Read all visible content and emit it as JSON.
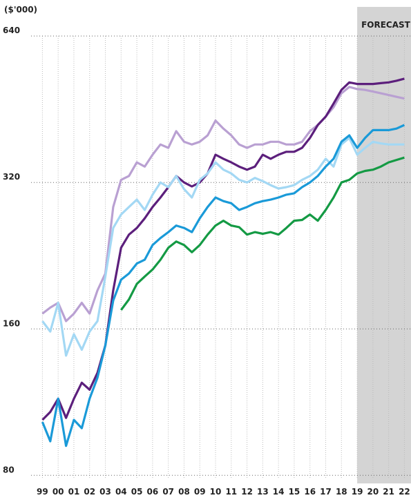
{
  "chart_data": {
    "type": "line",
    "y_label": "($'000)",
    "log_scale": true,
    "grid": true,
    "shaded_region": {
      "label": "FORECAST",
      "x": [
        2019,
        2022.42
      ],
      "color": "#d4d4d4"
    },
    "xlim": [
      1998.5,
      2022.42
    ],
    "ylim": [
      77,
      666
    ],
    "yticks": [
      80,
      160,
      320,
      640
    ],
    "xticks": [
      {
        "value": 1999,
        "label": "99"
      },
      {
        "value": 2000,
        "label": "00"
      },
      {
        "value": 2001,
        "label": "01"
      },
      {
        "value": 2002,
        "label": "02"
      },
      {
        "value": 2003,
        "label": "03"
      },
      {
        "value": 2004,
        "label": "04"
      },
      {
        "value": 2005,
        "label": "05"
      },
      {
        "value": 2006,
        "label": "06"
      },
      {
        "value": 2007,
        "label": "07"
      },
      {
        "value": 2008,
        "label": "08"
      },
      {
        "value": 2009,
        "label": "09"
      },
      {
        "value": 2010,
        "label": "10"
      },
      {
        "value": 2011,
        "label": "11"
      },
      {
        "value": 2012,
        "label": "12"
      },
      {
        "value": 2013,
        "label": "13"
      },
      {
        "value": 2014,
        "label": "14"
      },
      {
        "value": 2015,
        "label": "15"
      },
      {
        "value": 2016,
        "label": "16"
      },
      {
        "value": 2017,
        "label": "17"
      },
      {
        "value": 2018,
        "label": "18"
      },
      {
        "value": 2019,
        "label": "19"
      },
      {
        "value": 2020,
        "label": "20"
      },
      {
        "value": 2021,
        "label": "21"
      },
      {
        "value": 2022,
        "label": "22"
      }
    ],
    "x": [
      1999,
      1999.5,
      2000,
      2000.5,
      2001,
      2001.5,
      2002,
      2002.5,
      2003,
      2003.5,
      2004,
      2004.5,
      2005,
      2005.5,
      2006,
      2006.5,
      2007,
      2007.5,
      2008,
      2008.5,
      2009,
      2009.5,
      2010,
      2010.5,
      2011,
      2011.5,
      2012,
      2012.5,
      2013,
      2013.5,
      2014,
      2014.5,
      2015,
      2015.5,
      2016,
      2016.5,
      2017,
      2017.5,
      2018,
      2018.5,
      2019,
      2019.5,
      2020,
      2020.5,
      2021,
      2021.5,
      2022
    ],
    "series": [
      {
        "color": "#b9a0d2",
        "values": [
          172,
          177,
          181,
          166,
          172,
          181,
          172,
          192,
          208,
          285,
          324,
          330,
          352,
          345,
          365,
          383,
          377,
          408,
          388,
          383,
          388,
          400,
          429,
          413,
          400,
          383,
          377,
          383,
          383,
          388,
          388,
          383,
          383,
          388,
          408,
          420,
          437,
          457,
          488,
          503,
          498,
          496,
          492,
          488,
          484,
          480,
          476
        ]
      },
      {
        "color": "#5c1f7c",
        "values": [
          104,
          108,
          115,
          105,
          115,
          124,
          120,
          130,
          148,
          192,
          235,
          250,
          258,
          270,
          285,
          298,
          313,
          330,
          320,
          314,
          320,
          334,
          365,
          358,
          352,
          345,
          340,
          345,
          365,
          358,
          365,
          370,
          370,
          377,
          395,
          420,
          437,
          465,
          496,
          514,
          510,
          510,
          510,
          512,
          514,
          518,
          523
        ]
      },
      {
        "color": "#a3d8f4",
        "values": [
          166,
          158,
          181,
          141,
          156,
          145,
          158,
          166,
          205,
          258,
          275,
          285,
          295,
          281,
          302,
          320,
          313,
          330,
          310,
          298,
          324,
          334,
          352,
          340,
          334,
          324,
          320,
          327,
          322,
          316,
          311,
          313,
          316,
          324,
          330,
          340,
          358,
          345,
          383,
          395,
          365,
          377,
          388,
          385,
          383,
          383,
          383
        ]
      },
      {
        "color": "#1a9ad8",
        "values": [
          103,
          94,
          115,
          92,
          104,
          100,
          115,
          127,
          148,
          183,
          202,
          208,
          218,
          222,
          238,
          246,
          253,
          261,
          258,
          253,
          270,
          285,
          298,
          293,
          290,
          281,
          285,
          290,
          293,
          295,
          298,
          302,
          304,
          313,
          320,
          330,
          345,
          358,
          388,
          400,
          377,
          395,
          410,
          410,
          410,
          413,
          420
        ]
      },
      {
        "color": "#149a44",
        "values": [
          null,
          null,
          null,
          null,
          null,
          null,
          null,
          null,
          null,
          null,
          175,
          184,
          198,
          205,
          212,
          222,
          235,
          242,
          238,
          230,
          238,
          250,
          261,
          267,
          261,
          259,
          250,
          253,
          251,
          253,
          250,
          258,
          267,
          268,
          275,
          267,
          281,
          298,
          320,
          324,
          334,
          338,
          340,
          345,
          352,
          356,
          360
        ]
      }
    ]
  }
}
